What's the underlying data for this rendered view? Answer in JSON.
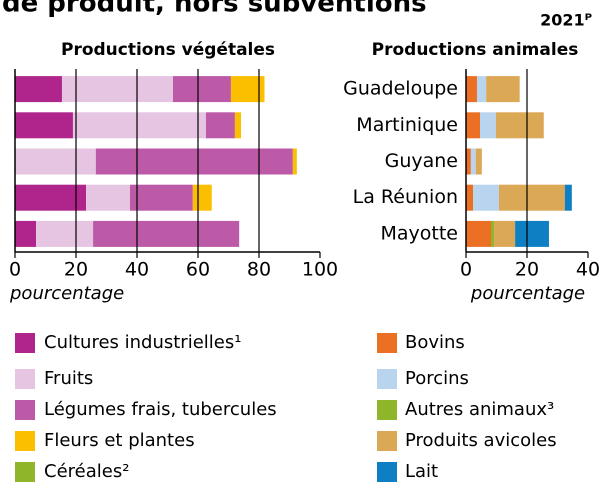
{
  "title": "de produit, hors subventions",
  "date": "2021ᴾ",
  "chart_data": [
    {
      "type": "bar",
      "orientation": "horizontal",
      "stacked": true,
      "subtitle": "Productions végétales",
      "xlabel": "pourcentage",
      "categories": [
        "Guadeloupe",
        "Martinique",
        "Guyane",
        "La Réunion",
        "Mayotte"
      ],
      "xlim": [
        0,
        100
      ],
      "xticks": [
        0,
        20,
        40,
        60,
        80,
        100
      ],
      "grid": true,
      "series": [
        {
          "name": "Cultures industrielles¹",
          "color": "#b0258c",
          "values": [
            15.4,
            19,
            0,
            23.3,
            6.9
          ]
        },
        {
          "name": "Fruits",
          "color": "#e6c5e2",
          "values": [
            36.4,
            43.6,
            26.5,
            14.4,
            18.7
          ]
        },
        {
          "name": "Légumes frais, tubercules",
          "color": "#bc5aa7",
          "values": [
            19,
            9.5,
            64.6,
            20.6,
            47.9
          ]
        },
        {
          "name": "Fleurs et plantes",
          "color": "#fcbf00",
          "values": [
            11,
            2,
            1.3,
            6.2,
            0
          ]
        },
        {
          "name": "Céréales²",
          "color": "#8fb52a",
          "values": [
            0,
            0,
            0,
            0,
            0
          ]
        }
      ]
    },
    {
      "type": "bar",
      "orientation": "horizontal",
      "stacked": true,
      "subtitle": "Productions animales",
      "xlabel": "pourcentage",
      "xlim": [
        0,
        40
      ],
      "xticks": [
        0,
        20,
        40
      ],
      "grid": true,
      "series": [
        {
          "name": "Bovins",
          "color": "#ec7024",
          "values": [
            3.6,
            4.6,
            1.6,
            2.3,
            8.2
          ]
        },
        {
          "name": "Porcins",
          "color": "#b9d4ef",
          "values": [
            3,
            5.2,
            1.6,
            8.5,
            0
          ]
        },
        {
          "name": "Autres animaux³",
          "color": "#8fb52a",
          "values": [
            0,
            0,
            0,
            0,
            1
          ]
        },
        {
          "name": "Produits avicoles",
          "color": "#dba856",
          "values": [
            11,
            15.7,
            2,
            21.6,
            6.9
          ]
        },
        {
          "name": "Lait",
          "color": "#0e7fc3",
          "values": [
            0,
            0,
            0,
            2.3,
            11.1
          ]
        }
      ]
    }
  ]
}
